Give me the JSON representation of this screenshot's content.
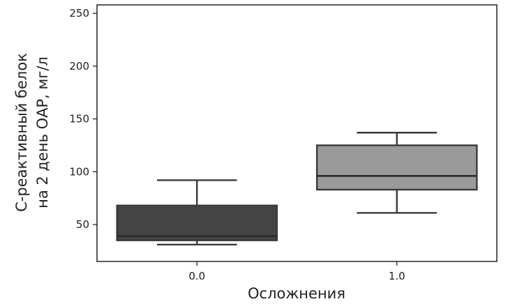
{
  "chart_data": {
    "type": "box",
    "xlabel": "Осложнения",
    "ylabel_lines": [
      "С-реактивный белок",
      "на 2 день ОАР, мг/л"
    ],
    "categories": [
      "0.0",
      "1.0"
    ],
    "yticks": [
      50,
      100,
      150,
      200,
      250
    ],
    "ylim": [
      15,
      258
    ],
    "grid": false,
    "boxes": [
      {
        "category": "0.0",
        "whisker_low": 31,
        "q1": 35,
        "median": 39,
        "q3": 68,
        "whisker_high": 92,
        "color": "#444444"
      },
      {
        "category": "1.0",
        "whisker_low": 61,
        "q1": 83,
        "median": 96,
        "q3": 125,
        "whisker_high": 137,
        "color": "#9a9a9a"
      }
    ]
  }
}
